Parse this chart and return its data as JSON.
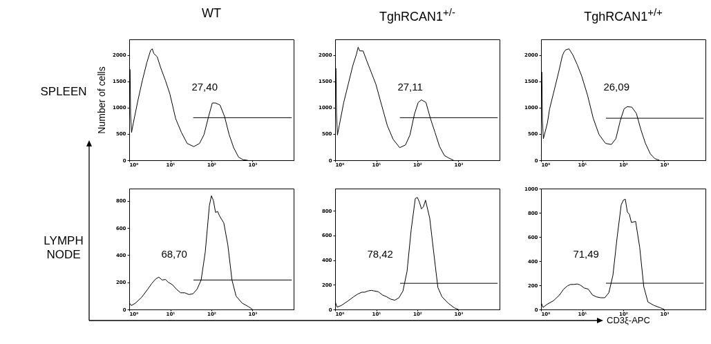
{
  "chart_data": [
    {
      "type": "line",
      "title": "WT",
      "ylabel": "Number of cells",
      "annotations": [
        "SPLEEN",
        "27,40"
      ],
      "log": "x",
      "xlim": [
        1,
        10000
      ],
      "ylim": [
        0,
        2300
      ],
      "xticks": [
        {
          "value": 1,
          "label": "10⁰"
        },
        {
          "value": 10,
          "label": "10¹"
        },
        {
          "value": 100,
          "label": "10²"
        },
        {
          "value": 1000,
          "label": "10³"
        }
      ],
      "yticks": [
        0,
        500,
        1000,
        1500,
        2000
      ],
      "series": [
        {
          "color": "#000000",
          "x": [
            1.05,
            1.08,
            1.14,
            1.26,
            1.43,
            1.62,
            2.09,
            2.69,
            3.31,
            3.63,
            3.98,
            4.79,
            5.89,
            7.59,
            9.77,
            13.5,
            18.6,
            25.7,
            37.2,
            51.3,
            66.1,
            85.1,
            105,
            126,
            162,
            209,
            269,
            347,
            457,
            589,
            759
          ],
          "values": [
            1730,
            880,
            530,
            710,
            920,
            1130,
            1520,
            1860,
            2090,
            2120,
            2030,
            1970,
            1750,
            1520,
            1260,
            790,
            530,
            320,
            260,
            320,
            490,
            830,
            1090,
            1090,
            1050,
            830,
            490,
            240,
            60,
            10,
            0
          ]
        },
        {
          "color": "#000000",
          "x": [
            36,
            9000
          ],
          "values": [
            810,
            810
          ]
        }
      ]
    },
    {
      "type": "line",
      "title": "TghRCAN1$^{+/-}$",
      "annotations": [
        "27,11"
      ],
      "log": "x",
      "xlim": [
        1,
        10000
      ],
      "ylim": [
        0,
        2300
      ],
      "xticks": [
        {
          "value": 1,
          "label": "10⁰"
        },
        {
          "value": 10,
          "label": "10¹"
        },
        {
          "value": 100,
          "label": "10²"
        },
        {
          "value": 1000,
          "label": "10³"
        }
      ],
      "yticks": [
        0,
        500,
        1000,
        1500,
        2000
      ],
      "series": [
        {
          "color": "#000000",
          "x": [
            1.05,
            1.08,
            1.14,
            1.26,
            1.43,
            1.62,
            2.09,
            2.69,
            3.31,
            3.63,
            3.98,
            4.79,
            5.89,
            7.59,
            9.77,
            13.5,
            18.6,
            25.7,
            37.2,
            51.3,
            66.1,
            85.1,
            105,
            126,
            162,
            209,
            269,
            347,
            457,
            589,
            759
          ],
          "values": [
            1750,
            880,
            480,
            660,
            880,
            1100,
            1450,
            1800,
            2020,
            2150,
            2080,
            2080,
            1890,
            1670,
            1450,
            1050,
            660,
            400,
            240,
            290,
            480,
            880,
            1100,
            1150,
            1100,
            790,
            530,
            260,
            90,
            40,
            0
          ]
        },
        {
          "color": "#000000",
          "x": [
            37.6,
            9000
          ],
          "values": [
            810,
            810
          ]
        }
      ]
    },
    {
      "type": "line",
      "title": "TghRCAN1$^{+/+}$",
      "annotations": [
        "26,09"
      ],
      "log": "x",
      "xlim": [
        1,
        10000
      ],
      "ylim": [
        0,
        2300
      ],
      "xticks": [
        {
          "value": 1,
          "label": "10⁰"
        },
        {
          "value": 10,
          "label": "10¹"
        },
        {
          "value": 100,
          "label": "10²"
        },
        {
          "value": 1000,
          "label": "10³"
        }
      ],
      "yticks": [
        0,
        500,
        1000,
        1500,
        2000
      ],
      "series": [
        {
          "color": "#000000",
          "x": [
            1.05,
            1.08,
            1.14,
            1.26,
            1.43,
            1.62,
            2.09,
            2.69,
            3.31,
            3.63,
            3.98,
            4.79,
            5.89,
            7.59,
            9.77,
            13.5,
            18.6,
            25.7,
            37.2,
            51.3,
            66.1,
            85.1,
            105,
            126,
            162,
            209,
            269,
            347,
            457,
            589,
            759
          ],
          "values": [
            1680,
            760,
            410,
            540,
            710,
            980,
            1330,
            1680,
            1990,
            2060,
            2100,
            2120,
            2010,
            1820,
            1600,
            1240,
            800,
            490,
            320,
            300,
            410,
            760,
            980,
            1020,
            1010,
            890,
            580,
            320,
            120,
            30,
            0
          ]
        },
        {
          "color": "#000000",
          "x": [
            38,
            9000
          ],
          "values": [
            800,
            800
          ]
        }
      ]
    },
    {
      "type": "line",
      "annotations": [
        "LYMPH NODE",
        "68,70"
      ],
      "log": "x",
      "xlim": [
        1,
        10000
      ],
      "ylim": [
        0,
        890
      ],
      "xticks": [
        {
          "value": 1,
          "label": "10⁰"
        },
        {
          "value": 10,
          "label": "10¹"
        },
        {
          "value": 100,
          "label": "10²"
        },
        {
          "value": 1000,
          "label": "10³"
        }
      ],
      "yticks": [
        0,
        200,
        400,
        600,
        800
      ],
      "series": [
        {
          "color": "#000000",
          "x": [
            1.02,
            1.12,
            1.41,
            2,
            2.82,
            3.55,
            4.47,
            5.25,
            6.31,
            7.59,
            8.91,
            11.2,
            14.1,
            17.8,
            22.4,
            28.2,
            35.5,
            44.7,
            56.2,
            70.8,
            89.1,
            100,
            112,
            126,
            141,
            158,
            200,
            251,
            316,
            398,
            562,
            794,
            1000
          ],
          "values": [
            46,
            29,
            46,
            89,
            149,
            192,
            226,
            238,
            217,
            221,
            200,
            183,
            149,
            123,
            123,
            110,
            115,
            149,
            217,
            423,
            765,
            837,
            800,
            714,
            722,
            688,
            637,
            474,
            217,
            98,
            46,
            21,
            0
          ]
        },
        {
          "color": "#000000",
          "x": [
            36.6,
            9000
          ],
          "values": [
            217,
            217
          ]
        }
      ]
    },
    {
      "type": "line",
      "annotations": [
        "78,42"
      ],
      "log": "x",
      "xlim": [
        1,
        10000
      ],
      "ylim": [
        0,
        980
      ],
      "xticks": [
        {
          "value": 1,
          "label": "10⁰"
        },
        {
          "value": 10,
          "label": "10¹"
        },
        {
          "value": 100,
          "label": "10²"
        },
        {
          "value": 1000,
          "label": "10³"
        }
      ],
      "yticks": [
        0,
        200,
        400,
        600,
        800
      ],
      "series": [
        {
          "color": "#000000",
          "x": [
            1.02,
            1.12,
            1.41,
            2,
            2.82,
            3.55,
            4.47,
            5.25,
            6.31,
            7.59,
            8.91,
            11.2,
            14.1,
            17.8,
            22.4,
            28.2,
            35.5,
            44.7,
            56.2,
            70.8,
            89.1,
            100,
            112,
            126,
            141,
            158,
            200,
            251,
            316,
            398,
            562,
            794,
            1000
          ],
          "values": [
            56,
            19,
            32,
            66,
            103,
            125,
            140,
            140,
            150,
            155,
            150,
            144,
            118,
            103,
            84,
            75,
            94,
            150,
            309,
            646,
            899,
            908,
            871,
            815,
            833,
            886,
            740,
            459,
            178,
            103,
            51,
            13,
            0
          ]
        },
        {
          "color": "#000000",
          "x": [
            38,
            9000
          ],
          "values": [
            212,
            212
          ]
        }
      ]
    },
    {
      "type": "line",
      "xlabel": "CD3ξ-APC",
      "annotations": [
        "71,49"
      ],
      "log": "x",
      "xlim": [
        1,
        10000
      ],
      "ylim": [
        0,
        1000
      ],
      "xticks": [
        {
          "value": 1,
          "label": "10⁰"
        },
        {
          "value": 10,
          "label": "10¹"
        },
        {
          "value": 100,
          "label": "10²"
        },
        {
          "value": 1000,
          "label": "10³"
        }
      ],
      "yticks": [
        0,
        200,
        400,
        600,
        800,
        1000
      ],
      "series": [
        {
          "color": "#000000",
          "x": [
            1.02,
            1.12,
            1.41,
            2,
            2.82,
            3.55,
            4.47,
            5.25,
            6.31,
            7.59,
            8.91,
            11.2,
            14.1,
            17.8,
            22.4,
            28.2,
            35.5,
            44.7,
            56.2,
            70.8,
            89.1,
            100,
            112,
            126,
            141,
            158,
            200,
            251,
            316,
            398,
            562,
            794,
            1000
          ],
          "values": [
            52,
            17,
            43,
            72,
            120,
            168,
            197,
            207,
            207,
            211,
            203,
            178,
            168,
            120,
            104,
            97,
            97,
            139,
            284,
            594,
            864,
            903,
            913,
            806,
            787,
            719,
            729,
            516,
            188,
            62,
            33,
            14,
            0
          ]
        },
        {
          "color": "#000000",
          "x": [
            38,
            9000
          ],
          "values": [
            217,
            217
          ]
        }
      ]
    }
  ]
}
